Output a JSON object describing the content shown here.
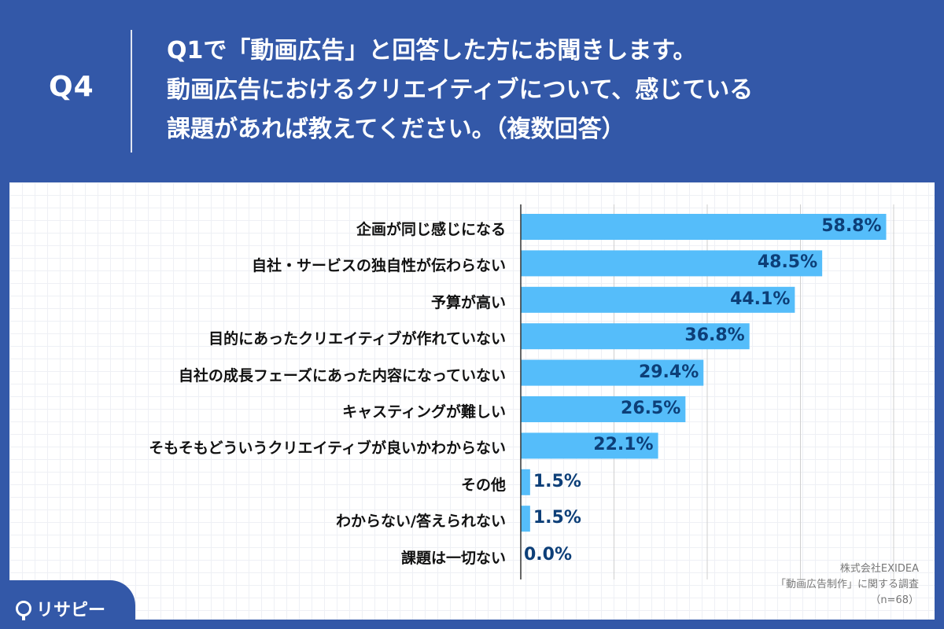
{
  "header": {
    "qnum": "Q4",
    "question_lines": [
      "Q1で「動画広告」と回答した方にお聞きします。",
      "動画広告におけるクリエイティブについて、感じている",
      "課題があれば教えてください。（複数回答）"
    ]
  },
  "chart_data": {
    "type": "bar",
    "orientation": "horizontal",
    "categories": [
      "企画が同じ感じになる",
      "自社・サービスの独自性が伝わらない",
      "予算が高い",
      "目的にあったクリエイティブが作れていない",
      "自社の成長フェーズにあった内容になっていない",
      "キャスティングが難しい",
      "そもそもどういうクリエイティブが良いかわからない",
      "その他",
      "わからない/答えられない",
      "課題は一切ない"
    ],
    "values": [
      58.8,
      48.5,
      44.1,
      36.8,
      29.4,
      26.5,
      22.1,
      1.5,
      1.5,
      0.0
    ],
    "value_labels": [
      "58.8%",
      "48.5%",
      "44.1%",
      "36.8%",
      "29.4%",
      "26.5%",
      "22.1%",
      "1.5%",
      "1.5%",
      "0.0%"
    ],
    "xlim": [
      0,
      60
    ],
    "grid": true,
    "bar_color": "#55bdfa"
  },
  "credits": {
    "company": "株式会社EXIDEA",
    "survey": "「動画広告制作」に関する調査",
    "n": "（n=68）"
  },
  "logo": {
    "text": "リサピー"
  },
  "colors": {
    "background": "#3358a8",
    "bar": "#55bdfa",
    "value_text": "#0d3f78"
  }
}
